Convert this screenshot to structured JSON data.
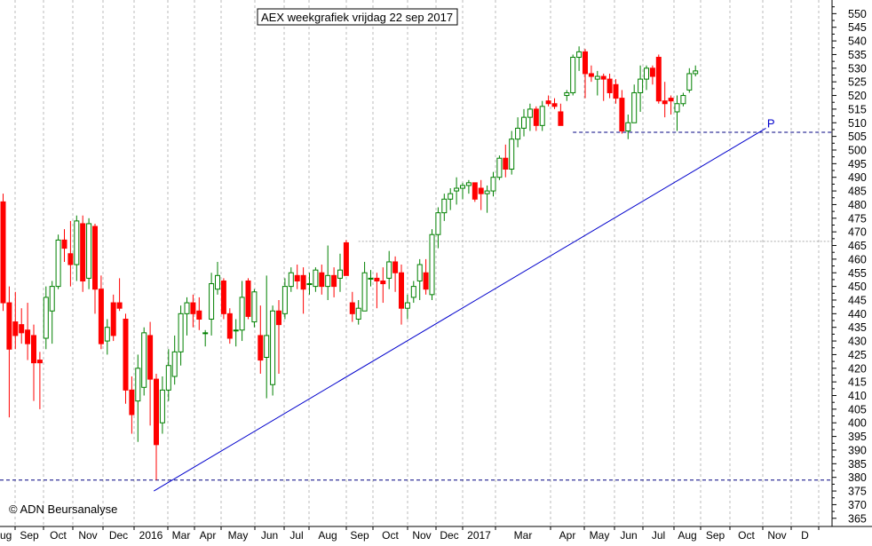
{
  "chart_data": {
    "type": "candlestick",
    "title": "AEX weekgrafiek vrijdag 22 sep 2017",
    "watermark": "© ADN Beursanalyse",
    "y_axis": {
      "position": "right",
      "ylim": [
        362,
        555
      ],
      "ticks": [
        365,
        370,
        375,
        380,
        385,
        390,
        395,
        400,
        405,
        410,
        415,
        420,
        425,
        430,
        435,
        440,
        445,
        450,
        455,
        460,
        465,
        470,
        475,
        480,
        485,
        490,
        495,
        500,
        505,
        510,
        515,
        520,
        525,
        530,
        535,
        540,
        545,
        550
      ]
    },
    "x_axis": {
      "labels": [
        "ug",
        "Sep",
        "Oct",
        "Nov",
        "Dec",
        "2016",
        "Mar",
        "Apr",
        "May",
        "Jun",
        "Jul",
        "Aug",
        "Sep",
        "Oct",
        "Nov",
        "Dec",
        "2017",
        "Mar",
        "Apr",
        "May",
        "Jun",
        "Jul",
        "Aug",
        "Sep",
        "Oct",
        "Nov",
        "D"
      ]
    },
    "grid": true,
    "colors": {
      "up": "#008000",
      "down": "#ff0000",
      "support": "#000080",
      "trendline": "#0000cc",
      "grid": "#bbbbbb",
      "hline_grey": "#aaaaaa"
    },
    "annotations": [
      {
        "type": "hline",
        "name": "support-line-bottom",
        "y": 379,
        "style": "dashed",
        "color": "#000080"
      },
      {
        "type": "hline",
        "name": "support-line-top",
        "y": 506.5,
        "x_from_week": 93,
        "style": "dashed",
        "color": "#000080"
      },
      {
        "type": "hline",
        "name": "reference-line-grey",
        "y": 466.5,
        "x_from_week": 58,
        "style": "dotted",
        "color": "#aaaaaa"
      },
      {
        "type": "trendline",
        "name": "trendline",
        "from": {
          "week": 24.6,
          "y": 375
        },
        "to": {
          "week": 124.5,
          "y": 508
        }
      },
      {
        "type": "label",
        "name": "p-label",
        "text": "P",
        "week": 124.7,
        "y": 510
      }
    ],
    "candles": [
      {
        "o": 481,
        "h": 484,
        "l": 441,
        "c": 444
      },
      {
        "o": 444,
        "h": 450,
        "l": 402,
        "c": 427
      },
      {
        "o": 437,
        "h": 448,
        "l": 427,
        "c": 432
      },
      {
        "o": 436,
        "h": 442,
        "l": 429,
        "c": 433
      },
      {
        "o": 434,
        "h": 444,
        "l": 423,
        "c": 429
      },
      {
        "o": 432,
        "h": 436,
        "l": 408,
        "c": 422
      },
      {
        "o": 423,
        "h": 426,
        "l": 405,
        "c": 422
      },
      {
        "o": 431,
        "h": 450,
        "l": 427,
        "c": 446
      },
      {
        "o": 441,
        "h": 452,
        "l": 429,
        "c": 450
      },
      {
        "o": 450,
        "h": 469,
        "l": 449,
        "c": 467
      },
      {
        "o": 467,
        "h": 471,
        "l": 459,
        "c": 464
      },
      {
        "o": 462,
        "h": 474,
        "l": 450,
        "c": 458
      },
      {
        "o": 458,
        "h": 476,
        "l": 452,
        "c": 474
      },
      {
        "o": 473,
        "h": 476,
        "l": 448,
        "c": 452
      },
      {
        "o": 453,
        "h": 475,
        "l": 449,
        "c": 473
      },
      {
        "o": 472,
        "h": 473,
        "l": 440,
        "c": 449
      },
      {
        "o": 449,
        "h": 454,
        "l": 427,
        "c": 429
      },
      {
        "o": 430,
        "h": 438,
        "l": 425,
        "c": 435
      },
      {
        "o": 444,
        "h": 447,
        "l": 430,
        "c": 432
      },
      {
        "o": 444,
        "h": 453,
        "l": 441,
        "c": 442
      },
      {
        "o": 438,
        "h": 440,
        "l": 407,
        "c": 412
      },
      {
        "o": 412,
        "h": 417,
        "l": 396,
        "c": 403
      },
      {
        "o": 408,
        "h": 425,
        "l": 393,
        "c": 420
      },
      {
        "o": 413,
        "h": 435,
        "l": 410,
        "c": 433
      },
      {
        "o": 432,
        "h": 437,
        "l": 399,
        "c": 416
      },
      {
        "o": 416,
        "h": 418,
        "l": 379,
        "c": 392
      },
      {
        "o": 400,
        "h": 417,
        "l": 396,
        "c": 412
      },
      {
        "o": 412,
        "h": 427,
        "l": 408,
        "c": 421
      },
      {
        "o": 417,
        "h": 432,
        "l": 414,
        "c": 426
      },
      {
        "o": 426,
        "h": 443,
        "l": 421,
        "c": 440
      },
      {
        "o": 440,
        "h": 446,
        "l": 432,
        "c": 444
      },
      {
        "o": 444,
        "h": 447,
        "l": 435,
        "c": 440
      },
      {
        "o": 441,
        "h": 446,
        "l": 434,
        "c": 438
      },
      {
        "o": 433,
        "h": 434,
        "l": 428,
        "c": 433
      },
      {
        "o": 438,
        "h": 455,
        "l": 432,
        "c": 451
      },
      {
        "o": 449,
        "h": 459,
        "l": 447,
        "c": 454
      },
      {
        "o": 452,
        "h": 453,
        "l": 438,
        "c": 440
      },
      {
        "o": 440,
        "h": 442,
        "l": 429,
        "c": 431
      },
      {
        "o": 434,
        "h": 438,
        "l": 428,
        "c": 434
      },
      {
        "o": 434,
        "h": 452,
        "l": 430,
        "c": 446
      },
      {
        "o": 452,
        "h": 453,
        "l": 438,
        "c": 439
      },
      {
        "o": 437,
        "h": 449,
        "l": 435,
        "c": 448
      },
      {
        "o": 432,
        "h": 443,
        "l": 418,
        "c": 423
      },
      {
        "o": 424,
        "h": 454,
        "l": 409,
        "c": 432
      },
      {
        "o": 414,
        "h": 443,
        "l": 410,
        "c": 441
      },
      {
        "o": 441,
        "h": 445,
        "l": 418,
        "c": 436
      },
      {
        "o": 440,
        "h": 453,
        "l": 438,
        "c": 450
      },
      {
        "o": 450,
        "h": 457,
        "l": 448,
        "c": 455
      },
      {
        "o": 454,
        "h": 458,
        "l": 449,
        "c": 452
      },
      {
        "o": 454,
        "h": 457,
        "l": 440,
        "c": 449
      },
      {
        "o": 451,
        "h": 455,
        "l": 447,
        "c": 451
      },
      {
        "o": 450,
        "h": 457,
        "l": 448,
        "c": 456
      },
      {
        "o": 455,
        "h": 458,
        "l": 447,
        "c": 450
      },
      {
        "o": 450,
        "h": 465,
        "l": 445,
        "c": 454
      },
      {
        "o": 454,
        "h": 457,
        "l": 446,
        "c": 450
      },
      {
        "o": 453,
        "h": 462,
        "l": 448,
        "c": 456
      },
      {
        "o": 466,
        "h": 467,
        "l": 454,
        "c": 454
      },
      {
        "o": 444,
        "h": 448,
        "l": 437,
        "c": 440
      },
      {
        "o": 438,
        "h": 445,
        "l": 436,
        "c": 442
      },
      {
        "o": 441,
        "h": 459,
        "l": 441,
        "c": 455
      },
      {
        "o": 453,
        "h": 456,
        "l": 450,
        "c": 453
      },
      {
        "o": 453,
        "h": 455,
        "l": 442,
        "c": 452
      },
      {
        "o": 452,
        "h": 457,
        "l": 444,
        "c": 451
      },
      {
        "o": 453,
        "h": 463,
        "l": 449,
        "c": 459
      },
      {
        "o": 459,
        "h": 461,
        "l": 448,
        "c": 455
      },
      {
        "o": 455,
        "h": 458,
        "l": 436,
        "c": 442
      },
      {
        "o": 442,
        "h": 447,
        "l": 438,
        "c": 444
      },
      {
        "o": 446,
        "h": 452,
        "l": 444,
        "c": 450
      },
      {
        "o": 452,
        "h": 460,
        "l": 445,
        "c": 458
      },
      {
        "o": 455,
        "h": 460,
        "l": 447,
        "c": 449
      },
      {
        "o": 447,
        "h": 471,
        "l": 445,
        "c": 469
      },
      {
        "o": 469,
        "h": 479,
        "l": 464,
        "c": 477
      },
      {
        "o": 477,
        "h": 484,
        "l": 474,
        "c": 482
      },
      {
        "o": 482,
        "h": 486,
        "l": 478,
        "c": 484
      },
      {
        "o": 485,
        "h": 490,
        "l": 480,
        "c": 486
      },
      {
        "o": 486,
        "h": 488,
        "l": 482,
        "c": 487
      },
      {
        "o": 487,
        "h": 489,
        "l": 484,
        "c": 488
      },
      {
        "o": 488,
        "h": 488,
        "l": 481,
        "c": 482
      },
      {
        "o": 486,
        "h": 489,
        "l": 478,
        "c": 484
      },
      {
        "o": 484,
        "h": 487,
        "l": 477,
        "c": 485
      },
      {
        "o": 485,
        "h": 492,
        "l": 483,
        "c": 490
      },
      {
        "o": 490,
        "h": 498,
        "l": 489,
        "c": 497
      },
      {
        "o": 497,
        "h": 502,
        "l": 490,
        "c": 493
      },
      {
        "o": 493,
        "h": 507,
        "l": 491,
        "c": 504
      },
      {
        "o": 504,
        "h": 512,
        "l": 501,
        "c": 508
      },
      {
        "o": 508,
        "h": 515,
        "l": 505,
        "c": 512
      },
      {
        "o": 512,
        "h": 517,
        "l": 507,
        "c": 515
      },
      {
        "o": 515,
        "h": 516,
        "l": 507,
        "c": 509
      },
      {
        "o": 509,
        "h": 518,
        "l": 507,
        "c": 516
      },
      {
        "o": 518,
        "h": 520,
        "l": 516,
        "c": 517
      },
      {
        "o": 517,
        "h": 519,
        "l": 515,
        "c": 516
      },
      {
        "o": 514,
        "h": 517,
        "l": 510,
        "c": 509
      },
      {
        "o": 520,
        "h": 522,
        "l": 518,
        "c": 521
      },
      {
        "o": 521,
        "h": 535,
        "l": 520,
        "c": 534
      },
      {
        "o": 534,
        "h": 538,
        "l": 529,
        "c": 536
      },
      {
        "o": 536,
        "h": 537,
        "l": 519,
        "c": 528
      },
      {
        "o": 528,
        "h": 531,
        "l": 525,
        "c": 527
      },
      {
        "o": 526,
        "h": 529,
        "l": 520,
        "c": 527
      },
      {
        "o": 527,
        "h": 528,
        "l": 518,
        "c": 526
      },
      {
        "o": 526,
        "h": 528,
        "l": 519,
        "c": 521
      },
      {
        "o": 524,
        "h": 526,
        "l": 517,
        "c": 519
      },
      {
        "o": 519,
        "h": 522,
        "l": 506,
        "c": 507
      },
      {
        "o": 507,
        "h": 513,
        "l": 504,
        "c": 510
      },
      {
        "o": 510,
        "h": 524,
        "l": 510,
        "c": 521
      },
      {
        "o": 521,
        "h": 531,
        "l": 514,
        "c": 526
      },
      {
        "o": 526,
        "h": 531,
        "l": 522,
        "c": 530
      },
      {
        "o": 530,
        "h": 531,
        "l": 524,
        "c": 527
      },
      {
        "o": 534,
        "h": 535,
        "l": 517,
        "c": 518
      },
      {
        "o": 518,
        "h": 525,
        "l": 512,
        "c": 517
      },
      {
        "o": 519,
        "h": 520,
        "l": 513,
        "c": 518
      },
      {
        "o": 514,
        "h": 520,
        "l": 507,
        "c": 517
      },
      {
        "o": 517,
        "h": 521,
        "l": 516,
        "c": 520
      },
      {
        "o": 522,
        "h": 530,
        "l": 521,
        "c": 528
      },
      {
        "o": 528,
        "h": 531,
        "l": 527,
        "c": 529
      }
    ]
  }
}
